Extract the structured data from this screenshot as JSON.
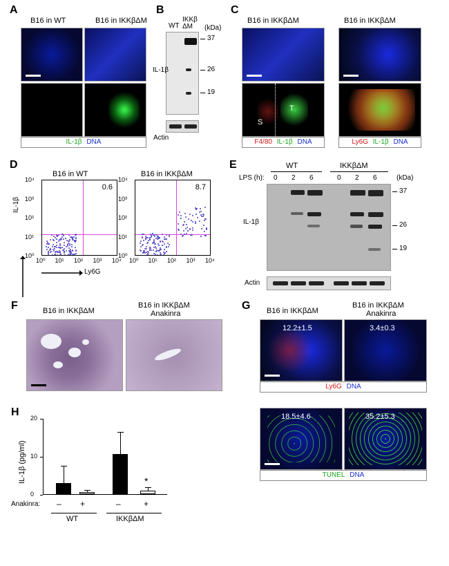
{
  "labels": {
    "A": "A",
    "B": "B",
    "C": "C",
    "D": "D",
    "E": "E",
    "F": "F",
    "G": "G",
    "H": "H"
  },
  "A": {
    "left_title": "B16 in WT",
    "right_title": "B16 in IKKβΔM",
    "legend_il1b": "IL-1β",
    "legend_dna": "DNA"
  },
  "B": {
    "lanes": [
      "WT",
      "IKKβ\nΔM"
    ],
    "kda_label": "(kDa)",
    "markers": [
      "37",
      "26",
      "19"
    ],
    "row_label": "IL-1β",
    "actin_label": "Actin"
  },
  "C": {
    "col1_title": "B16 in IKKβΔM",
    "col2_title": "B16 in IKKβΔM",
    "legend1_f480": "F4/80",
    "legend_il1b": "IL-1β",
    "legend_dna": "DNA",
    "legend2_ly6g": "Ly6G",
    "letters": {
      "S": "S",
      "T": "T"
    }
  },
  "D": {
    "left_title": "B16 in WT",
    "right_title": "B16 in IKKβΔM",
    "y_label": "IL-1β",
    "x_label": "Ly6G",
    "axis_ticks": [
      "10⁰",
      "10¹",
      "10²",
      "10³",
      "10⁴"
    ],
    "left_pct": "0.6",
    "right_pct": "8.7"
  },
  "E": {
    "groups": [
      "WT",
      "IKKβΔM"
    ],
    "lps_label": "LPS (h):",
    "times": [
      "0",
      "2",
      "6",
      "0",
      "2",
      "6"
    ],
    "kda_label": "(kDa)",
    "markers": [
      "37",
      "26",
      "19"
    ],
    "row_label": "IL-1β",
    "actin_label": "Actin"
  },
  "F": {
    "left_title": "B16 in IKKβΔM",
    "right_title1": "B16 in IKKβΔM",
    "right_title2": "Anakinra"
  },
  "G": {
    "left_title": "B16 in IKKβΔM",
    "right_title1": "B16 in IKKβΔM",
    "right_title2": "Anakinra",
    "top_left_val": "12.2±1.5",
    "top_right_val": "3.4±0.3",
    "top_legend_ly6g": "Ly6G",
    "top_legend_dna": "DNA",
    "bot_left_val": "18.5±4.6",
    "bot_right_val": "35.2±5.3",
    "bot_legend_tunel": "TUNEL",
    "bot_legend_dna": "DNA"
  },
  "H": {
    "y_label": "IL-1β (pg/ml)",
    "y_max": 20,
    "y_ticks": [
      0,
      10,
      20
    ],
    "bars": [
      {
        "group": "WT",
        "anakinra": "-",
        "value": 3.0,
        "err": 4.2,
        "fill": "solid"
      },
      {
        "group": "WT",
        "anakinra": "+",
        "value": 0.5,
        "err": 0.4,
        "fill": "open"
      },
      {
        "group": "IKKβΔM",
        "anakinra": "-",
        "value": 10.6,
        "err": 5.5,
        "fill": "solid"
      },
      {
        "group": "IKKβΔM",
        "anakinra": "+",
        "value": 0.9,
        "err": 0.7,
        "fill": "open"
      }
    ],
    "anakinra_label": "Anakinra:",
    "sig": "*",
    "groups": [
      "WT",
      "IKKβΔM"
    ]
  },
  "style": {
    "bg": "#ffffff",
    "panel_label_fontsize": 16,
    "sub_fontsize": 11,
    "green": "#17a51c",
    "blue": "#172fd1",
    "red": "#d11717",
    "black": "#000000",
    "blot_bg": "#bcbcbc",
    "magenta": "#e040e0"
  }
}
